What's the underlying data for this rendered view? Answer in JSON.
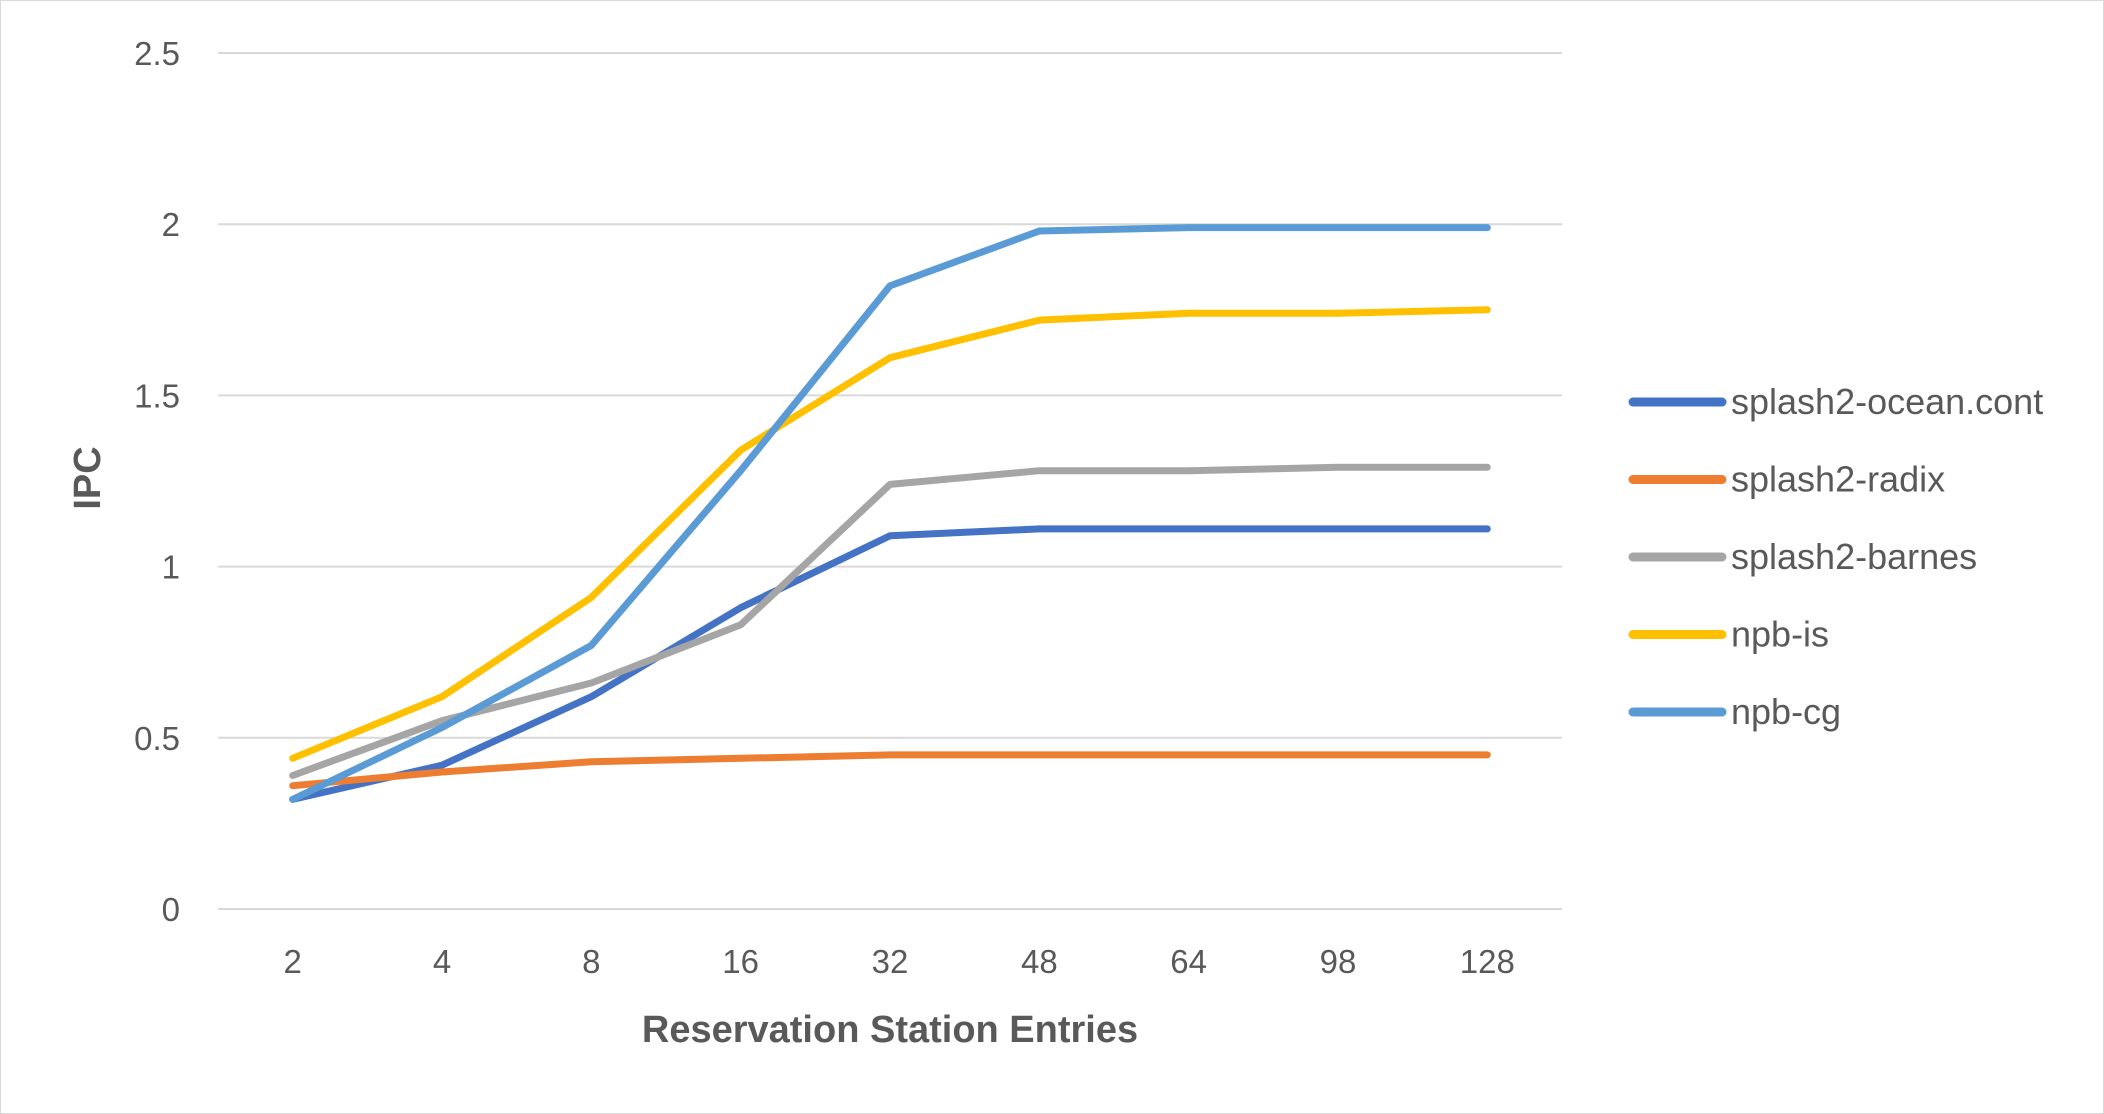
{
  "chart_data": {
    "type": "line",
    "title": "",
    "xlabel": "Reservation Station Entries",
    "ylabel": "IPC",
    "categories": [
      "2",
      "4",
      "8",
      "16",
      "32",
      "48",
      "64",
      "98",
      "128"
    ],
    "ylim": [
      0,
      2.5
    ],
    "yticks": [
      "0",
      "0.5",
      "1",
      "1.5",
      "2",
      "2.5"
    ],
    "grid": true,
    "legend_position": "right",
    "series": [
      {
        "name": "splash2-ocean.cont",
        "color": "#4472C4",
        "values": [
          0.32,
          0.42,
          0.62,
          0.88,
          1.09,
          1.11,
          1.11,
          1.11,
          1.11
        ]
      },
      {
        "name": "splash2-radix",
        "color": "#ED7D31",
        "values": [
          0.36,
          0.4,
          0.43,
          0.44,
          0.45,
          0.45,
          0.45,
          0.45,
          0.45
        ]
      },
      {
        "name": "splash2-barnes",
        "color": "#A5A5A5",
        "values": [
          0.39,
          0.55,
          0.66,
          0.83,
          1.24,
          1.28,
          1.28,
          1.29,
          1.29
        ]
      },
      {
        "name": "npb-is",
        "color": "#FFC000",
        "values": [
          0.44,
          0.62,
          0.91,
          1.34,
          1.61,
          1.72,
          1.74,
          1.74,
          1.75
        ]
      },
      {
        "name": "npb-cg",
        "color": "#5B9BD5",
        "values": [
          0.32,
          0.53,
          0.77,
          1.28,
          1.82,
          1.98,
          1.99,
          1.99,
          1.99
        ]
      }
    ]
  }
}
